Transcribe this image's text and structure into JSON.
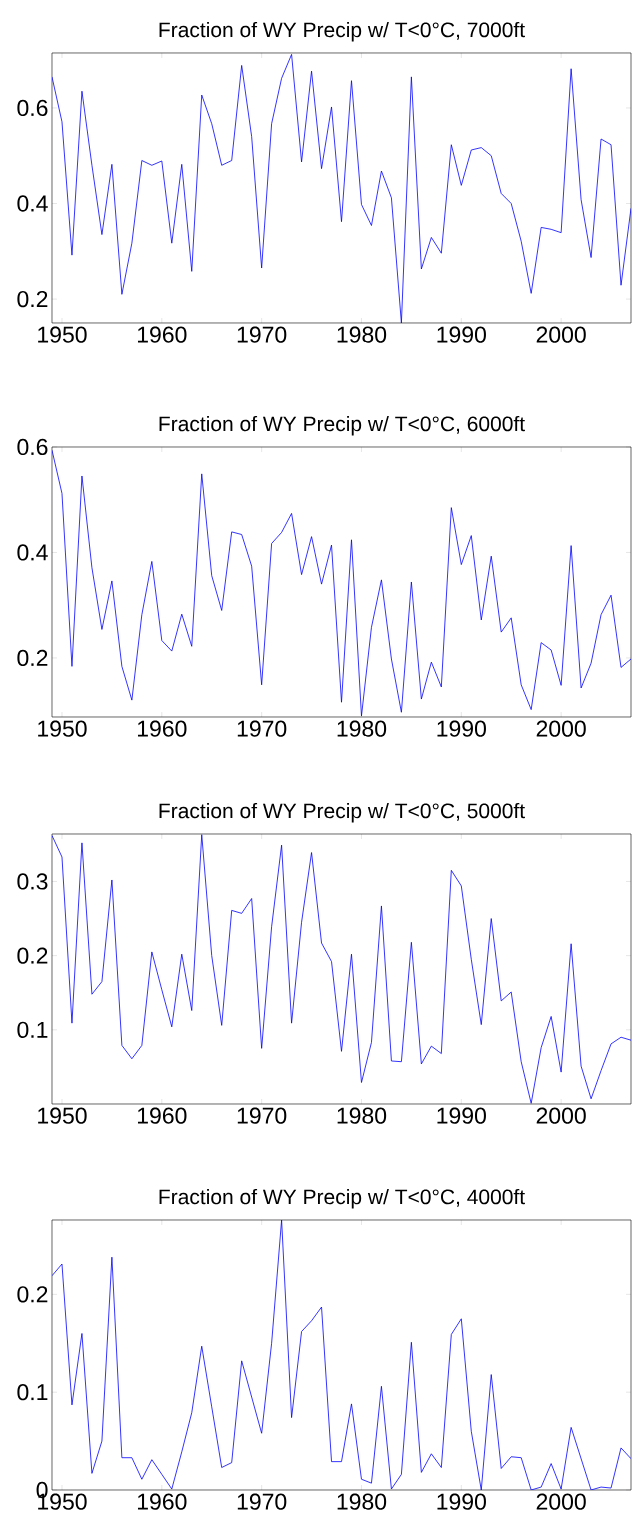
{
  "chart_data": [
    {
      "type": "line",
      "title": "Fraction of WY Precip w/ T<0°C, 7000ft",
      "color": "#0000ff",
      "x": [
        1949,
        1950,
        1951,
        1952,
        1953,
        1954,
        1955,
        1956,
        1957,
        1958,
        1959,
        1960,
        1961,
        1962,
        1963,
        1964,
        1965,
        1966,
        1967,
        1968,
        1969,
        1970,
        1971,
        1972,
        1973,
        1974,
        1975,
        1976,
        1977,
        1978,
        1979,
        1980,
        1981,
        1982,
        1983,
        1984,
        1985,
        1986,
        1987,
        1988,
        1989,
        1990,
        1991,
        1992,
        1993,
        1994,
        1995,
        1996,
        1997,
        1998,
        1999,
        2000,
        2001,
        2002,
        2003,
        2004,
        2005,
        2006,
        2007
      ],
      "values": [
        0.665,
        0.571,
        0.292,
        0.635,
        0.48,
        0.335,
        0.482,
        0.21,
        0.317,
        0.49,
        0.48,
        0.489,
        0.317,
        0.482,
        0.258,
        0.627,
        0.567,
        0.48,
        0.49,
        0.689,
        0.54,
        0.265,
        0.567,
        0.662,
        0.712,
        0.487,
        0.677,
        0.473,
        0.602,
        0.362,
        0.657,
        0.398,
        0.354,
        0.468,
        0.412,
        0.15,
        0.665,
        0.263,
        0.329,
        0.296,
        0.523,
        0.438,
        0.512,
        0.517,
        0.5,
        0.421,
        0.4,
        0.321,
        0.212,
        0.35,
        0.346,
        0.339,
        0.682,
        0.408,
        0.287,
        0.535,
        0.523,
        0.229,
        0.39
      ],
      "xlim": [
        1949,
        2007
      ],
      "ylim": [
        0.15,
        0.715
      ],
      "xticks": [
        1950,
        1960,
        1970,
        1980,
        1990,
        2000
      ],
      "yticks": [
        0.2,
        0.4,
        0.6
      ]
    },
    {
      "type": "line",
      "title": "Fraction of WY Precip w/ T<0°C, 6000ft",
      "color": "#0000ff",
      "x": [
        1949,
        1950,
        1951,
        1952,
        1953,
        1954,
        1955,
        1956,
        1957,
        1958,
        1959,
        1960,
        1961,
        1962,
        1963,
        1964,
        1965,
        1966,
        1967,
        1968,
        1969,
        1970,
        1971,
        1972,
        1973,
        1974,
        1975,
        1976,
        1977,
        1978,
        1979,
        1980,
        1981,
        1982,
        1983,
        1984,
        1985,
        1986,
        1987,
        1988,
        1989,
        1990,
        1991,
        1992,
        1993,
        1994,
        1995,
        1996,
        1997,
        1998,
        1999,
        2000,
        2001,
        2002,
        2003,
        2004,
        2005,
        2006,
        2007
      ],
      "values": [
        0.594,
        0.512,
        0.184,
        0.545,
        0.371,
        0.254,
        0.346,
        0.184,
        0.12,
        0.282,
        0.383,
        0.233,
        0.213,
        0.283,
        0.222,
        0.549,
        0.356,
        0.29,
        0.439,
        0.434,
        0.374,
        0.149,
        0.417,
        0.438,
        0.474,
        0.358,
        0.43,
        0.34,
        0.414,
        0.116,
        0.424,
        0.09,
        0.258,
        0.348,
        0.198,
        0.097,
        0.344,
        0.122,
        0.192,
        0.145,
        0.485,
        0.377,
        0.432,
        0.272,
        0.393,
        0.249,
        0.276,
        0.149,
        0.102,
        0.229,
        0.215,
        0.148,
        0.413,
        0.143,
        0.19,
        0.282,
        0.319,
        0.182,
        0.198
      ],
      "xlim": [
        1949,
        2007
      ],
      "ylim": [
        0.088,
        0.6
      ],
      "xticks": [
        1950,
        1960,
        1970,
        1980,
        1990,
        2000
      ],
      "yticks": [
        0.2,
        0.4,
        0.6
      ]
    },
    {
      "type": "line",
      "title": "Fraction of WY Precip w/ T<0°C, 5000ft",
      "color": "#0000ff",
      "x": [
        1949,
        1950,
        1951,
        1952,
        1953,
        1954,
        1955,
        1956,
        1957,
        1958,
        1959,
        1960,
        1961,
        1962,
        1963,
        1964,
        1965,
        1966,
        1967,
        1968,
        1969,
        1970,
        1971,
        1972,
        1973,
        1974,
        1975,
        1976,
        1977,
        1978,
        1979,
        1980,
        1981,
        1982,
        1983,
        1984,
        1985,
        1986,
        1987,
        1988,
        1989,
        1990,
        1991,
        1992,
        1993,
        1994,
        1995,
        1996,
        1997,
        1998,
        1999,
        2000,
        2001,
        2002,
        2003,
        2004,
        2005,
        2006,
        2007
      ],
      "values": [
        0.362,
        0.333,
        0.109,
        0.352,
        0.148,
        0.165,
        0.302,
        0.079,
        0.061,
        0.079,
        0.205,
        0.154,
        0.104,
        0.202,
        0.126,
        0.363,
        0.2,
        0.106,
        0.261,
        0.257,
        0.277,
        0.075,
        0.239,
        0.349,
        0.109,
        0.245,
        0.339,
        0.217,
        0.192,
        0.071,
        0.202,
        0.029,
        0.083,
        0.267,
        0.058,
        0.057,
        0.218,
        0.054,
        0.078,
        0.068,
        0.315,
        0.294,
        0.195,
        0.107,
        0.25,
        0.139,
        0.151,
        0.057,
        0.001,
        0.076,
        0.118,
        0.043,
        0.216,
        0.051,
        0.007,
        0.045,
        0.081,
        0.09,
        0.086
      ],
      "xlim": [
        1949,
        2007
      ],
      "ylim": [
        0,
        0.364
      ],
      "xticks": [
        1950,
        1960,
        1970,
        1980,
        1990,
        2000
      ],
      "yticks": [
        0.1,
        0.2,
        0.3
      ]
    },
    {
      "type": "line",
      "title": "Fraction of WY Precip w/ T<0°C, 4000ft",
      "color": "#0000ff",
      "x": [
        1949,
        1950,
        1951,
        1952,
        1953,
        1954,
        1955,
        1956,
        1957,
        1958,
        1959,
        1960,
        1961,
        1962,
        1963,
        1964,
        1965,
        1966,
        1967,
        1968,
        1969,
        1970,
        1971,
        1972,
        1973,
        1974,
        1975,
        1976,
        1977,
        1978,
        1979,
        1980,
        1981,
        1982,
        1983,
        1984,
        1985,
        1986,
        1987,
        1988,
        1989,
        1990,
        1991,
        1992,
        1993,
        1994,
        1995,
        1996,
        1997,
        1998,
        1999,
        2000,
        2001,
        2002,
        2003,
        2004,
        2005,
        2006,
        2007
      ],
      "values": [
        0.219,
        0.231,
        0.087,
        0.16,
        0.017,
        0.05,
        0.238,
        0.033,
        0.033,
        0.011,
        0.031,
        0.016,
        0.001,
        0.039,
        0.079,
        0.147,
        0.085,
        0.023,
        0.028,
        0.132,
        0.095,
        0.058,
        0.15,
        0.276,
        0.074,
        0.162,
        0.173,
        0.187,
        0.029,
        0.029,
        0.088,
        0.011,
        0.007,
        0.106,
        0.001,
        0.016,
        0.151,
        0.018,
        0.037,
        0.023,
        0.159,
        0.175,
        0.06,
        0,
        0.118,
        0.022,
        0.034,
        0.033,
        0,
        0.003,
        0.027,
        0.001,
        0.064,
        0.032,
        0,
        0.003,
        0.002,
        0.043,
        0.032
      ],
      "xlim": [
        1949,
        2007
      ],
      "ylim": [
        0,
        0.276
      ],
      "xticks": [
        1950,
        1960,
        1970,
        1980,
        1990,
        2000
      ],
      "yticks": [
        0,
        0.1,
        0.2
      ]
    }
  ]
}
